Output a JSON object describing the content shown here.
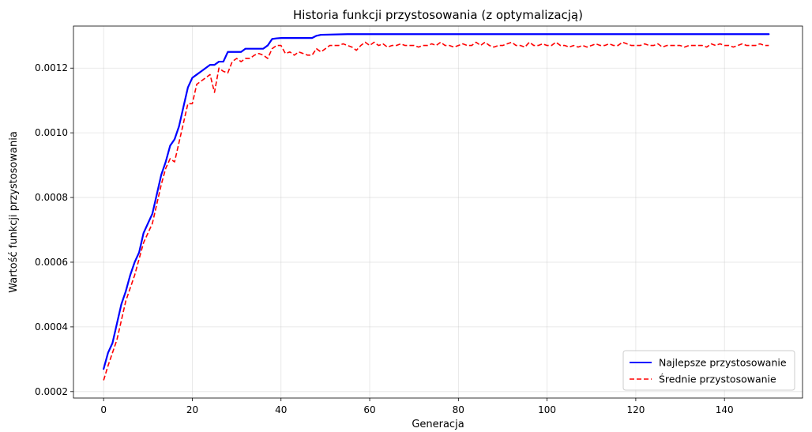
{
  "chart_data": {
    "type": "line",
    "title": "Historia funkcji przystosowania (z optymalizacją)",
    "xlabel": "Generacja",
    "ylabel": "Wartość funkcji przystosowania",
    "xlim": [
      -6.8,
      157.6
    ],
    "ylim": [
      0.00018,
      0.00133
    ],
    "xticks": [
      0,
      20,
      40,
      60,
      80,
      100,
      120,
      140
    ],
    "xtick_labels": [
      "0",
      "20",
      "40",
      "60",
      "80",
      "100",
      "120",
      "140"
    ],
    "yticks": [
      0.0002,
      0.0004,
      0.0006,
      0.0008,
      0.001,
      0.0012
    ],
    "ytick_labels": [
      "0.0002",
      "0.0004",
      "0.0006",
      "0.0008",
      "0.0010",
      "0.0012"
    ],
    "grid": true,
    "legend_position": "lower-right",
    "series": [
      {
        "name": "Najlepsze przystosowanie",
        "color": "#0000ff",
        "style": "solid",
        "points": [
          [
            0,
            0.00027
          ],
          [
            1,
            0.00032
          ],
          [
            2,
            0.00035
          ],
          [
            3,
            0.00041
          ],
          [
            4,
            0.00047
          ],
          [
            5,
            0.00051
          ],
          [
            6,
            0.00056
          ],
          [
            7,
            0.0006
          ],
          [
            8,
            0.00063
          ],
          [
            9,
            0.00069
          ],
          [
            10,
            0.00072
          ],
          [
            11,
            0.00075
          ],
          [
            12,
            0.00081
          ],
          [
            13,
            0.00087
          ],
          [
            14,
            0.00091
          ],
          [
            15,
            0.00096
          ],
          [
            16,
            0.00098
          ],
          [
            17,
            0.00102
          ],
          [
            18,
            0.00108
          ],
          [
            19,
            0.00114
          ],
          [
            20,
            0.00117
          ],
          [
            21,
            0.00118
          ],
          [
            22,
            0.00119
          ],
          [
            23,
            0.0012
          ],
          [
            24,
            0.00121
          ],
          [
            25,
            0.00121
          ],
          [
            26,
            0.00122
          ],
          [
            27,
            0.00122
          ],
          [
            28,
            0.00125
          ],
          [
            30,
            0.00125
          ],
          [
            31,
            0.00125
          ],
          [
            32,
            0.00126
          ],
          [
            33,
            0.00126
          ],
          [
            34,
            0.00126
          ],
          [
            35,
            0.00126
          ],
          [
            36,
            0.00126
          ],
          [
            37,
            0.00127
          ],
          [
            38,
            0.00129
          ],
          [
            39,
            0.001292
          ],
          [
            40,
            0.001293
          ],
          [
            47,
            0.001293
          ],
          [
            48,
            0.0013
          ],
          [
            49,
            0.001303
          ],
          [
            55,
            0.001305
          ],
          [
            150,
            0.001305
          ]
        ]
      },
      {
        "name": "Średnie przystosowanie",
        "color": "#ff0000",
        "style": "dashed",
        "points": [
          [
            0,
            0.000235
          ],
          [
            1,
            0.00028
          ],
          [
            2,
            0.00032
          ],
          [
            3,
            0.00036
          ],
          [
            4,
            0.00042
          ],
          [
            5,
            0.00048
          ],
          [
            6,
            0.00052
          ],
          [
            7,
            0.00056
          ],
          [
            8,
            0.00061
          ],
          [
            9,
            0.00066
          ],
          [
            10,
            0.00069
          ],
          [
            11,
            0.00072
          ],
          [
            12,
            0.00078
          ],
          [
            13,
            0.00084
          ],
          [
            14,
            0.00089
          ],
          [
            15,
            0.00092
          ],
          [
            16,
            0.00091
          ],
          [
            17,
            0.00097
          ],
          [
            18,
            0.00103
          ],
          [
            19,
            0.00109
          ],
          [
            20,
            0.00109
          ],
          [
            21,
            0.00115
          ],
          [
            22,
            0.00116
          ],
          [
            23,
            0.00117
          ],
          [
            24,
            0.00118
          ],
          [
            25,
            0.001125
          ],
          [
            26,
            0.0012
          ],
          [
            27,
            0.00119
          ],
          [
            28,
            0.001185
          ],
          [
            29,
            0.00122
          ],
          [
            30,
            0.00123
          ],
          [
            31,
            0.00122
          ],
          [
            32,
            0.00123
          ],
          [
            33,
            0.00123
          ],
          [
            34,
            0.00124
          ],
          [
            35,
            0.001245
          ],
          [
            36,
            0.00124
          ],
          [
            37,
            0.00123
          ],
          [
            38,
            0.00126
          ],
          [
            39,
            0.00127
          ],
          [
            40,
            0.00127
          ],
          [
            41,
            0.001245
          ],
          [
            42,
            0.00125
          ],
          [
            43,
            0.00124
          ],
          [
            44,
            0.00125
          ],
          [
            45,
            0.001245
          ],
          [
            46,
            0.00124
          ],
          [
            47,
            0.00124
          ],
          [
            48,
            0.00126
          ],
          [
            49,
            0.00125
          ],
          [
            50,
            0.00126
          ],
          [
            51,
            0.00127
          ],
          [
            52,
            0.00127
          ],
          [
            53,
            0.00127
          ],
          [
            54,
            0.001275
          ],
          [
            55,
            0.00127
          ],
          [
            56,
            0.001265
          ],
          [
            57,
            0.001255
          ],
          [
            58,
            0.00127
          ],
          [
            59,
            0.00128
          ],
          [
            60,
            0.00127
          ],
          [
            61,
            0.00128
          ],
          [
            62,
            0.00127
          ],
          [
            63,
            0.001275
          ],
          [
            64,
            0.001265
          ],
          [
            65,
            0.00127
          ],
          [
            66,
            0.00127
          ],
          [
            67,
            0.001275
          ],
          [
            68,
            0.00127
          ],
          [
            69,
            0.00127
          ],
          [
            70,
            0.00127
          ],
          [
            71,
            0.001265
          ],
          [
            72,
            0.00127
          ],
          [
            73,
            0.00127
          ],
          [
            74,
            0.001275
          ],
          [
            75,
            0.00127
          ],
          [
            76,
            0.00128
          ],
          [
            77,
            0.00127
          ],
          [
            78,
            0.00127
          ],
          [
            79,
            0.001265
          ],
          [
            80,
            0.00127
          ],
          [
            81,
            0.001275
          ],
          [
            82,
            0.00127
          ],
          [
            83,
            0.00127
          ],
          [
            84,
            0.00128
          ],
          [
            85,
            0.00127
          ],
          [
            86,
            0.00128
          ],
          [
            87,
            0.00127
          ],
          [
            88,
            0.001265
          ],
          [
            89,
            0.00127
          ],
          [
            90,
            0.00127
          ],
          [
            91,
            0.001275
          ],
          [
            92,
            0.00128
          ],
          [
            93,
            0.00127
          ],
          [
            94,
            0.00127
          ],
          [
            95,
            0.001265
          ],
          [
            96,
            0.00128
          ],
          [
            97,
            0.00127
          ],
          [
            98,
            0.00127
          ],
          [
            99,
            0.001275
          ],
          [
            100,
            0.00127
          ],
          [
            101,
            0.00127
          ],
          [
            102,
            0.00128
          ],
          [
            103,
            0.00127
          ],
          [
            104,
            0.00127
          ],
          [
            105,
            0.001265
          ],
          [
            106,
            0.00127
          ],
          [
            107,
            0.001265
          ],
          [
            108,
            0.00127
          ],
          [
            109,
            0.001265
          ],
          [
            110,
            0.00127
          ],
          [
            111,
            0.001275
          ],
          [
            112,
            0.00127
          ],
          [
            113,
            0.00127
          ],
          [
            114,
            0.001275
          ],
          [
            115,
            0.00127
          ],
          [
            116,
            0.00127
          ],
          [
            117,
            0.00128
          ],
          [
            118,
            0.001275
          ],
          [
            119,
            0.00127
          ],
          [
            120,
            0.00127
          ],
          [
            121,
            0.00127
          ],
          [
            122,
            0.001275
          ],
          [
            123,
            0.00127
          ],
          [
            124,
            0.00127
          ],
          [
            125,
            0.001275
          ],
          [
            126,
            0.001265
          ],
          [
            127,
            0.00127
          ],
          [
            128,
            0.00127
          ],
          [
            129,
            0.00127
          ],
          [
            130,
            0.00127
          ],
          [
            131,
            0.001265
          ],
          [
            132,
            0.00127
          ],
          [
            133,
            0.00127
          ],
          [
            134,
            0.00127
          ],
          [
            135,
            0.00127
          ],
          [
            136,
            0.001265
          ],
          [
            137,
            0.001275
          ],
          [
            138,
            0.00127
          ],
          [
            139,
            0.001275
          ],
          [
            140,
            0.00127
          ],
          [
            141,
            0.00127
          ],
          [
            142,
            0.001265
          ],
          [
            143,
            0.00127
          ],
          [
            144,
            0.001275
          ],
          [
            145,
            0.00127
          ],
          [
            146,
            0.00127
          ],
          [
            147,
            0.00127
          ],
          [
            148,
            0.001275
          ],
          [
            149,
            0.00127
          ],
          [
            150,
            0.00127
          ]
        ]
      }
    ]
  }
}
